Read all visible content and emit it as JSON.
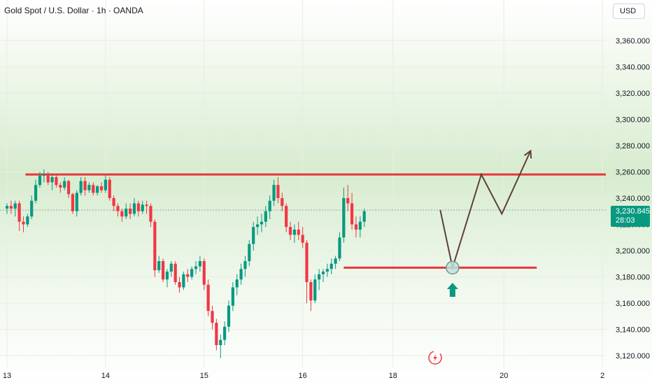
{
  "header": {
    "title": "Gold Spot / U.S. Dollar · 1h · OANDA",
    "currency": "USD"
  },
  "price_tag": {
    "price": "3,230.845",
    "countdown": "28:03"
  },
  "colors": {
    "up": "#089981",
    "down": "#f23645",
    "level": "#e8363c",
    "projection": "#5d4037",
    "marker_fill": "#bfe3d9",
    "marker_stroke": "#6a9a90"
  },
  "icons": {
    "alert": "lightning-icon",
    "arrow": "arrow-up-icon"
  },
  "chart_data": {
    "type": "candlestick",
    "symbol": "Gold Spot / U.S. Dollar",
    "interval": "1h",
    "ylim": [
      3112,
      3380
    ],
    "y_ticks": [
      "3,120.000",
      "3,140.000",
      "3,160.000",
      "3,180.000",
      "3,200.000",
      "3,220.000",
      "3,240.000",
      "3,260.000",
      "3,280.000",
      "3,300.000",
      "3,320.000",
      "3,340.000",
      "3,360.000"
    ],
    "y_tick_values": [
      3120,
      3140,
      3160,
      3180,
      3200,
      3220,
      3240,
      3260,
      3280,
      3300,
      3320,
      3340,
      3360
    ],
    "x_ticks": [
      "13",
      "14",
      "15",
      "16",
      "18",
      "20",
      "2"
    ],
    "x_tick_positions": [
      0,
      24,
      48,
      72,
      94,
      121,
      145
    ],
    "xlim": [
      -2,
      155
    ],
    "last_price": 3230.845,
    "candles": [
      [
        3232,
        3236,
        3228,
        3234
      ],
      [
        3234,
        3238,
        3228,
        3232
      ],
      [
        3232,
        3238,
        3226,
        3236
      ],
      [
        3236,
        3238,
        3215,
        3222
      ],
      [
        3222,
        3226,
        3214,
        3220
      ],
      [
        3220,
        3228,
        3218,
        3226
      ],
      [
        3226,
        3242,
        3224,
        3238
      ],
      [
        3238,
        3254,
        3236,
        3250
      ],
      [
        3250,
        3260,
        3248,
        3257
      ],
      [
        3257,
        3262,
        3252,
        3258
      ],
      [
        3258,
        3260,
        3250,
        3252
      ],
      [
        3252,
        3258,
        3246,
        3256
      ],
      [
        3256,
        3258,
        3248,
        3250
      ],
      [
        3250,
        3252,
        3244,
        3248
      ],
      [
        3248,
        3256,
        3246,
        3253
      ],
      [
        3253,
        3254,
        3240,
        3243
      ],
      [
        3243,
        3244,
        3228,
        3230
      ],
      [
        3230,
        3246,
        3226,
        3244
      ],
      [
        3244,
        3256,
        3242,
        3253
      ],
      [
        3253,
        3256,
        3242,
        3246
      ],
      [
        3246,
        3252,
        3244,
        3250
      ],
      [
        3250,
        3252,
        3242,
        3244
      ],
      [
        3244,
        3250,
        3242,
        3249
      ],
      [
        3249,
        3252,
        3244,
        3246
      ],
      [
        3246,
        3258,
        3244,
        3254
      ],
      [
        3254,
        3256,
        3238,
        3240
      ],
      [
        3240,
        3242,
        3230,
        3234
      ],
      [
        3234,
        3236,
        3226,
        3230
      ],
      [
        3230,
        3232,
        3222,
        3226
      ],
      [
        3226,
        3236,
        3224,
        3232
      ],
      [
        3232,
        3236,
        3224,
        3228
      ],
      [
        3228,
        3240,
        3226,
        3236
      ],
      [
        3236,
        3238,
        3226,
        3230
      ],
      [
        3230,
        3238,
        3228,
        3235
      ],
      [
        3235,
        3238,
        3228,
        3234
      ],
      [
        3234,
        3236,
        3218,
        3222
      ],
      [
        3222,
        3224,
        3180,
        3185
      ],
      [
        3185,
        3196,
        3183,
        3192
      ],
      [
        3192,
        3194,
        3176,
        3178
      ],
      [
        3178,
        3186,
        3172,
        3184
      ],
      [
        3184,
        3192,
        3180,
        3190
      ],
      [
        3190,
        3192,
        3174,
        3176
      ],
      [
        3176,
        3180,
        3168,
        3172
      ],
      [
        3172,
        3184,
        3170,
        3182
      ],
      [
        3182,
        3186,
        3176,
        3180
      ],
      [
        3180,
        3188,
        3178,
        3186
      ],
      [
        3186,
        3192,
        3182,
        3188
      ],
      [
        3188,
        3196,
        3184,
        3192
      ],
      [
        3192,
        3194,
        3170,
        3174
      ],
      [
        3174,
        3178,
        3150,
        3154
      ],
      [
        3154,
        3158,
        3140,
        3145
      ],
      [
        3145,
        3148,
        3124,
        3128
      ],
      [
        3128,
        3136,
        3118,
        3132
      ],
      [
        3132,
        3146,
        3128,
        3142
      ],
      [
        3142,
        3162,
        3138,
        3158
      ],
      [
        3158,
        3176,
        3154,
        3172
      ],
      [
        3172,
        3182,
        3166,
        3178
      ],
      [
        3178,
        3190,
        3174,
        3186
      ],
      [
        3186,
        3196,
        3180,
        3192
      ],
      [
        3192,
        3208,
        3188,
        3205
      ],
      [
        3205,
        3222,
        3200,
        3218
      ],
      [
        3218,
        3226,
        3212,
        3220
      ],
      [
        3220,
        3228,
        3214,
        3222
      ],
      [
        3222,
        3234,
        3218,
        3230
      ],
      [
        3230,
        3242,
        3224,
        3238
      ],
      [
        3238,
        3254,
        3234,
        3250
      ],
      [
        3250,
        3256,
        3236,
        3240
      ],
      [
        3240,
        3244,
        3230,
        3234
      ],
      [
        3234,
        3236,
        3214,
        3218
      ],
      [
        3218,
        3222,
        3208,
        3212
      ],
      [
        3212,
        3220,
        3206,
        3216
      ],
      [
        3216,
        3222,
        3208,
        3212
      ],
      [
        3212,
        3218,
        3202,
        3206
      ],
      [
        3206,
        3208,
        3160,
        3176
      ],
      [
        3176,
        3178,
        3154,
        3162
      ],
      [
        3162,
        3182,
        3160,
        3178
      ],
      [
        3178,
        3186,
        3170,
        3182
      ],
      [
        3182,
        3186,
        3176,
        3184
      ],
      [
        3184,
        3190,
        3180,
        3186
      ],
      [
        3186,
        3194,
        3182,
        3190
      ],
      [
        3190,
        3196,
        3186,
        3194
      ],
      [
        3194,
        3214,
        3192,
        3210
      ],
      [
        3210,
        3248,
        3206,
        3240
      ],
      [
        3240,
        3250,
        3230,
        3236
      ],
      [
        3236,
        3244,
        3216,
        3220
      ],
      [
        3220,
        3226,
        3210,
        3216
      ],
      [
        3216,
        3226,
        3210,
        3222
      ],
      [
        3222,
        3232,
        3218,
        3230
      ]
    ],
    "annotations": {
      "resistance": {
        "value": 3258,
        "x_range": [
          4.5,
          155
        ]
      },
      "support": {
        "value": 3187,
        "x_range": [
          82,
          129
        ]
      },
      "projection_path": [
        [
          105.5,
          3231
        ],
        [
          108.5,
          3187
        ],
        [
          115.5,
          3258
        ],
        [
          120.5,
          3228
        ],
        [
          127.5,
          3276
        ]
      ],
      "marker_circle": {
        "x": 108.5,
        "y": 3187
      },
      "up_arrow_x": 108.5
    }
  }
}
